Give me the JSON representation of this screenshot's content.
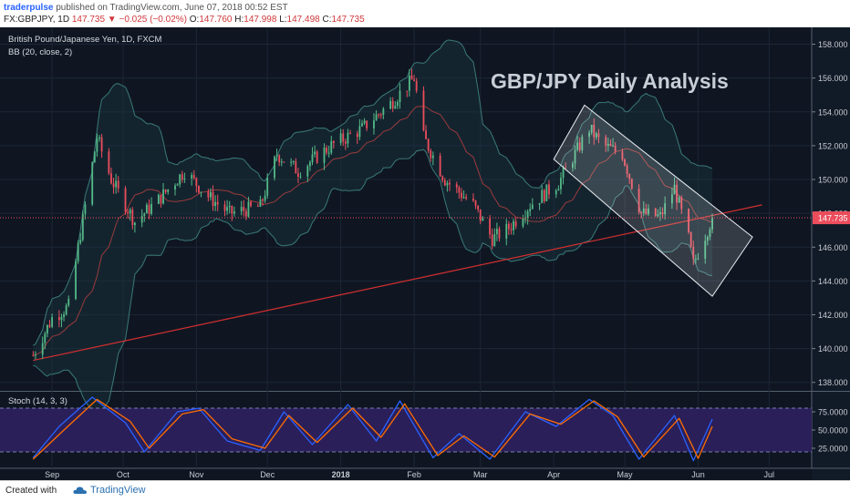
{
  "header": {
    "author": "traderpulse",
    "published": "published on TradingView.com, June 07, 2018 00:52 EST",
    "symbol": "FX:GBPJPY, 1D",
    "last": "147.735",
    "change": "−0.025 (−0.02%)",
    "ohlc": [
      {
        "label": "O:",
        "value": "147.760"
      },
      {
        "label": "H:",
        "value": "147.998"
      },
      {
        "label": "L:",
        "value": "147.498"
      },
      {
        "label": "C:",
        "value": "147.735"
      }
    ]
  },
  "footer": {
    "created": "Created with",
    "brand": "TradingView"
  },
  "chart_data": [
    {
      "type": "candlestick",
      "title": "GBP/JPY Daily Analysis",
      "instrument": "British Pound/Japanese Yen, 1D, FXCM",
      "indicator": "BB (20, close, 2)",
      "last_price": "147.735",
      "ylim": [
        137.5,
        159.0
      ],
      "y_ticks": [
        "138.000",
        "140.000",
        "142.000",
        "144.000",
        "146.000",
        "148.000",
        "150.000",
        "152.000",
        "154.000",
        "156.000",
        "158.000"
      ],
      "x_ticks": [
        "Sep",
        "Oct",
        "Nov",
        "Dec",
        "2018",
        "Feb",
        "Mar",
        "Apr",
        "May",
        "Jun",
        "Jul"
      ],
      "price_path": [
        {
          "date": "2017-08-24",
          "close": 139.6
        },
        {
          "date": "2017-09-01",
          "close": 141.8
        },
        {
          "date": "2017-09-08",
          "close": 142.5
        },
        {
          "date": "2017-09-12",
          "close": 146.0
        },
        {
          "date": "2017-09-20",
          "close": 152.5
        },
        {
          "date": "2017-09-26",
          "close": 150.0
        },
        {
          "date": "2017-10-06",
          "close": 147.5
        },
        {
          "date": "2017-10-16",
          "close": 148.8
        },
        {
          "date": "2017-10-27",
          "close": 150.5
        },
        {
          "date": "2017-11-06",
          "close": 149.0
        },
        {
          "date": "2017-11-15",
          "close": 148.0
        },
        {
          "date": "2017-11-28",
          "close": 148.4
        },
        {
          "date": "2017-12-05",
          "close": 151.5
        },
        {
          "date": "2017-12-14",
          "close": 150.5
        },
        {
          "date": "2017-12-28",
          "close": 152.0
        },
        {
          "date": "2018-01-10",
          "close": 153.0
        },
        {
          "date": "2018-01-22",
          "close": 154.5
        },
        {
          "date": "2018-02-01",
          "close": 156.0
        },
        {
          "date": "2018-02-05",
          "close": 152.5
        },
        {
          "date": "2018-02-14",
          "close": 150.0
        },
        {
          "date": "2018-02-26",
          "close": 148.5
        },
        {
          "date": "2018-03-06",
          "close": 146.5
        },
        {
          "date": "2018-03-12",
          "close": 147.0
        },
        {
          "date": "2018-03-22",
          "close": 148.5
        },
        {
          "date": "2018-04-03",
          "close": 149.8
        },
        {
          "date": "2018-04-16",
          "close": 153.0
        },
        {
          "date": "2018-04-22",
          "close": 152.0
        },
        {
          "date": "2018-04-30",
          "close": 151.5
        },
        {
          "date": "2018-05-08",
          "close": 148.0
        },
        {
          "date": "2018-05-16",
          "close": 147.8
        },
        {
          "date": "2018-05-22",
          "close": 149.5
        },
        {
          "date": "2018-05-28",
          "close": 146.5
        },
        {
          "date": "2018-05-30",
          "close": 145.0
        },
        {
          "date": "2018-06-07",
          "close": 147.735
        }
      ],
      "trendline": {
        "from": {
          "date": "2017-08-24",
          "price": 139.3
        },
        "to": {
          "date": "2018-06-28",
          "price": 148.5
        }
      },
      "channel": [
        {
          "date": "2018-04-01",
          "price": 151.2
        },
        {
          "date": "2018-04-14",
          "price": 154.4
        },
        {
          "date": "2018-06-24",
          "price": 146.6
        },
        {
          "date": "2018-06-07",
          "price": 143.1
        }
      ]
    },
    {
      "type": "line",
      "title": "Stoch (14, 3, 3)",
      "ylim": [
        0,
        100
      ],
      "y_ticks": [
        "25.0000",
        "50.0000",
        "75.0000"
      ],
      "band": [
        20,
        80
      ],
      "series": [
        {
          "name": "",
          "color": "#2962ff",
          "points": [
            {
              "date": "2017-08-24",
              "value": 12
            },
            {
              "date": "2017-09-04",
              "value": 55
            },
            {
              "date": "2017-09-18",
              "value": 95
            },
            {
              "date": "2017-10-02",
              "value": 60
            },
            {
              "date": "2017-10-10",
              "value": 20
            },
            {
              "date": "2017-10-24",
              "value": 75
            },
            {
              "date": "2017-11-02",
              "value": 80
            },
            {
              "date": "2017-11-14",
              "value": 35
            },
            {
              "date": "2017-11-28",
              "value": 22
            },
            {
              "date": "2017-12-08",
              "value": 75
            },
            {
              "date": "2017-12-20",
              "value": 30
            },
            {
              "date": "2018-01-04",
              "value": 85
            },
            {
              "date": "2018-01-16",
              "value": 35
            },
            {
              "date": "2018-01-26",
              "value": 90
            },
            {
              "date": "2018-02-09",
              "value": 12
            },
            {
              "date": "2018-02-20",
              "value": 45
            },
            {
              "date": "2018-03-05",
              "value": 10
            },
            {
              "date": "2018-03-20",
              "value": 75
            },
            {
              "date": "2018-04-02",
              "value": 55
            },
            {
              "date": "2018-04-16",
              "value": 92
            },
            {
              "date": "2018-04-26",
              "value": 70
            },
            {
              "date": "2018-05-07",
              "value": 10
            },
            {
              "date": "2018-05-22",
              "value": 70
            },
            {
              "date": "2018-05-30",
              "value": 8
            },
            {
              "date": "2018-06-07",
              "value": 65
            }
          ]
        },
        {
          "name": "",
          "color": "#ff6d00",
          "points": [
            {
              "date": "2017-08-24",
              "value": 10
            },
            {
              "date": "2017-09-06",
              "value": 50
            },
            {
              "date": "2017-09-20",
              "value": 92
            },
            {
              "date": "2017-10-04",
              "value": 62
            },
            {
              "date": "2017-10-12",
              "value": 25
            },
            {
              "date": "2017-10-26",
              "value": 72
            },
            {
              "date": "2017-11-04",
              "value": 78
            },
            {
              "date": "2017-11-16",
              "value": 38
            },
            {
              "date": "2017-11-30",
              "value": 25
            },
            {
              "date": "2017-12-10",
              "value": 70
            },
            {
              "date": "2017-12-22",
              "value": 33
            },
            {
              "date": "2018-01-06",
              "value": 80
            },
            {
              "date": "2018-01-18",
              "value": 40
            },
            {
              "date": "2018-01-28",
              "value": 86
            },
            {
              "date": "2018-02-11",
              "value": 15
            },
            {
              "date": "2018-02-22",
              "value": 42
            },
            {
              "date": "2018-03-07",
              "value": 13
            },
            {
              "date": "2018-03-22",
              "value": 72
            },
            {
              "date": "2018-04-04",
              "value": 58
            },
            {
              "date": "2018-04-18",
              "value": 90
            },
            {
              "date": "2018-04-28",
              "value": 68
            },
            {
              "date": "2018-05-09",
              "value": 13
            },
            {
              "date": "2018-05-24",
              "value": 66
            },
            {
              "date": "2018-06-01",
              "value": 11
            },
            {
              "date": "2018-06-07",
              "value": 55
            }
          ]
        }
      ]
    }
  ],
  "colors": {
    "background": "#0f1622",
    "candle_up": "#53b987",
    "candle_down": "#eb4d5c",
    "bollinger": "#3a7a78",
    "trendline": "#d32f2f",
    "stoch_band": "#2b1f5a"
  }
}
